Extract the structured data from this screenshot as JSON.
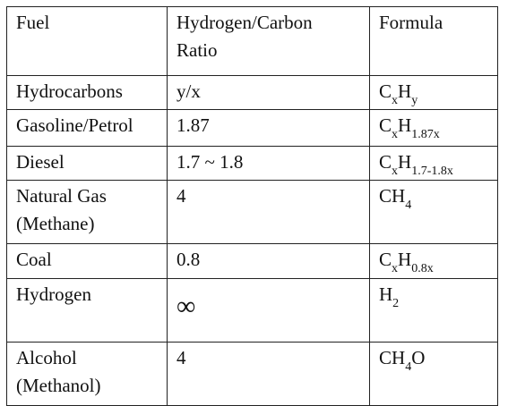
{
  "table": {
    "headers": {
      "fuel": "Fuel",
      "ratio_line1": "Hydrogen/Carbon",
      "ratio_line2": "Ratio",
      "formula": "Formula"
    },
    "rows": [
      {
        "fuel_line1": "Hydrocarbons",
        "ratio": "y/x",
        "formula": {
          "c": "C",
          "c_sub": "x",
          "h": "H",
          "h_sub": "y"
        }
      },
      {
        "fuel_line1": "Gasoline/Petrol",
        "ratio": "1.87",
        "formula": {
          "c": "C",
          "c_sub": "x",
          "h": "H",
          "h_sub": "1.87x"
        }
      },
      {
        "fuel_line1": "Diesel",
        "ratio": "1.7 ~ 1.8",
        "formula": {
          "c": "C",
          "c_sub": "x",
          "h": "H",
          "h_sub": "1.7-1.8x"
        }
      },
      {
        "fuel_line1": "Natural Gas",
        "fuel_line2": "(Methane)",
        "ratio": "4",
        "formula": {
          "c": "CH",
          "c_sub": "4"
        }
      },
      {
        "fuel_line1": "Coal",
        "ratio": "0.8",
        "formula": {
          "c": "C",
          "c_sub": "x",
          "h": "H",
          "h_sub": "0.8x"
        }
      },
      {
        "fuel_line1": "Hydrogen",
        "ratio": "∞",
        "formula": {
          "c": "H",
          "c_sub": "2"
        }
      },
      {
        "fuel_line1": "Alcohol",
        "fuel_line2": "(Methanol)",
        "ratio": "4",
        "formula": {
          "c": "CH",
          "c_sub": "4",
          "h": "O"
        }
      }
    ]
  }
}
